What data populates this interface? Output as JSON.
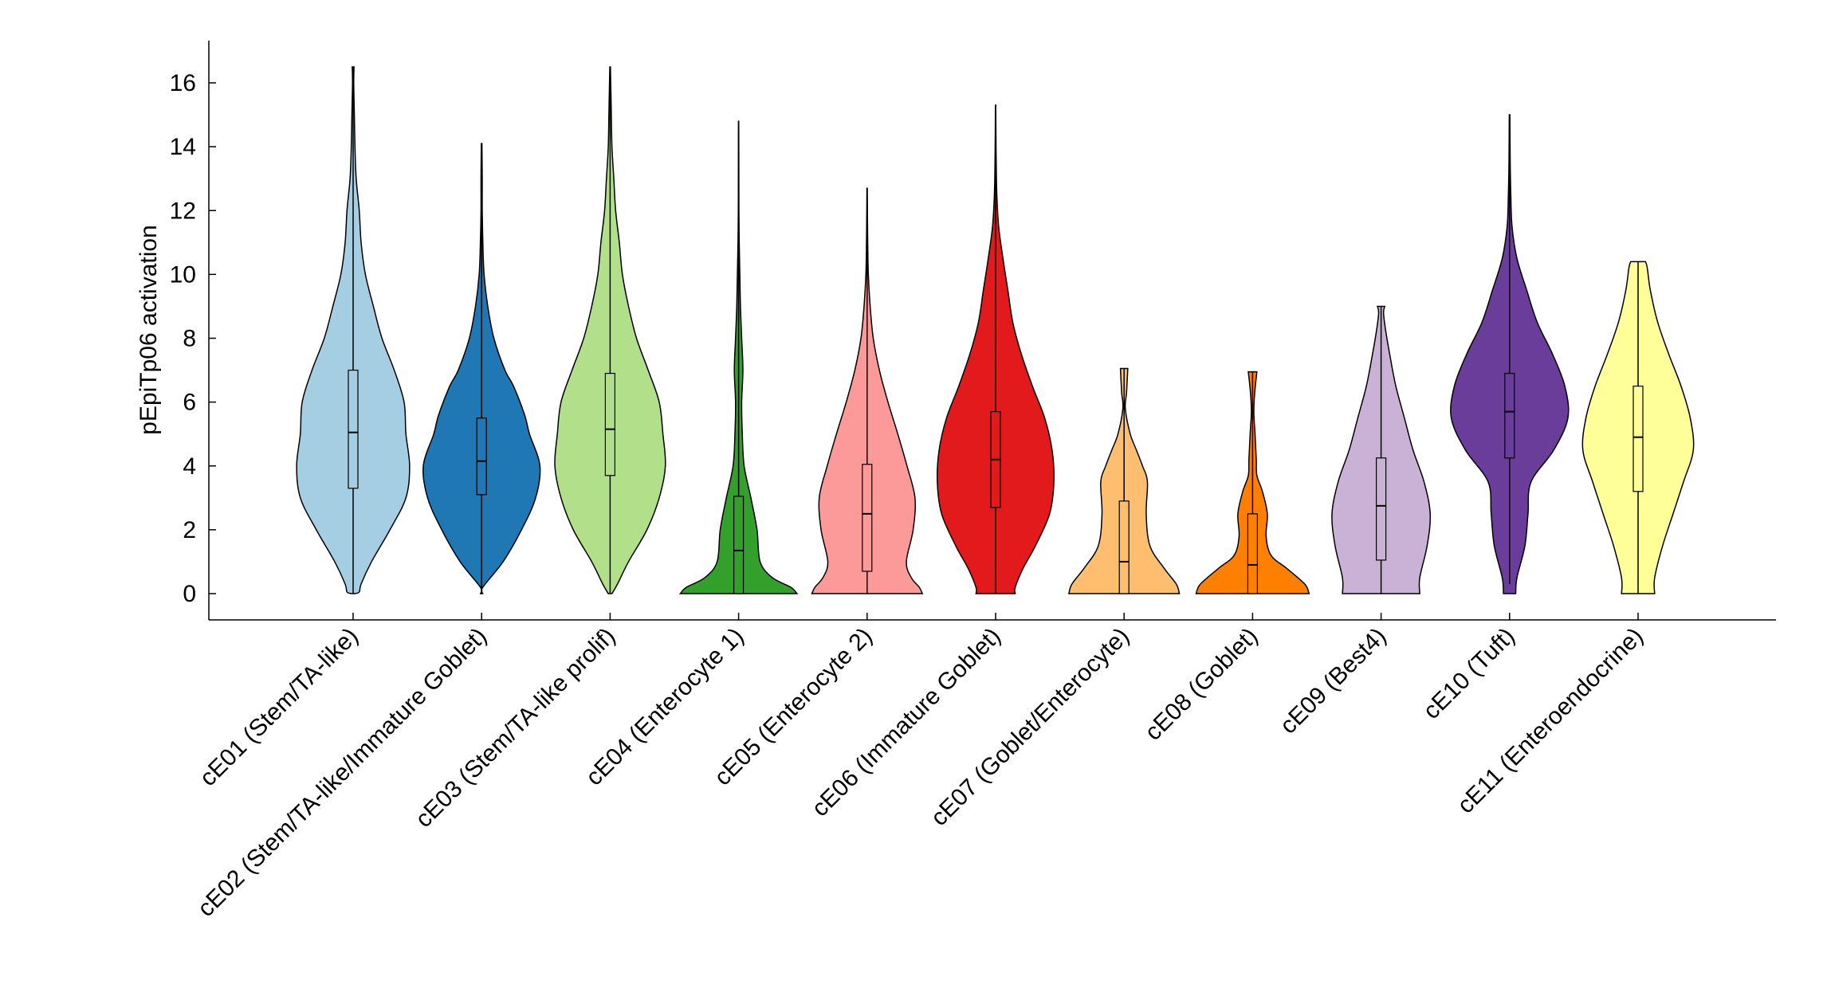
{
  "chart_data": {
    "type": "violin",
    "title": "",
    "xlabel": "",
    "ylabel": "pEpiTp06 activation",
    "ylim": [
      -0.8,
      17.3
    ],
    "yticks": [
      0,
      2,
      4,
      6,
      8,
      10,
      12,
      14,
      16
    ],
    "grid": false,
    "categories": [
      "cE01 (Stem/TA-like)",
      "cE02 (Stem/TA-like/Immature Goblet)",
      "cE03 (Stem/TA-like prolif)",
      "cE04 (Enterocyte 1)",
      "cE05 (Enterocyte 2)",
      "cE06 (Immature Goblet)",
      "cE07 (Goblet/Enterocyte)",
      "cE08 (Goblet)",
      "cE09 (Best4)",
      "cE10 (Tuft)",
      "cE11 (Enteroendocrine)"
    ],
    "colors": [
      "#a6cee3",
      "#1f78b4",
      "#b2df8a",
      "#33a02c",
      "#fb9a99",
      "#e31a1c",
      "#fdbf6f",
      "#ff7f00",
      "#cab2d6",
      "#6a3d9a",
      "#ffff99"
    ],
    "series": [
      {
        "name": "cE01 (Stem/TA-like)",
        "min": 0,
        "q1": 3.3,
        "median": 5.05,
        "q3": 7.0,
        "max": 16.5,
        "density": [
          [
            0,
            0.02
          ],
          [
            0.05,
            0.1
          ],
          [
            0.3,
            0.13
          ],
          [
            1,
            0.3
          ],
          [
            2,
            0.6
          ],
          [
            3,
            0.86
          ],
          [
            4,
            0.92
          ],
          [
            5,
            0.86
          ],
          [
            6,
            0.83
          ],
          [
            7,
            0.67
          ],
          [
            8,
            0.47
          ],
          [
            9,
            0.33
          ],
          [
            10,
            0.2
          ],
          [
            11,
            0.13
          ],
          [
            12,
            0.1
          ],
          [
            13,
            0.05
          ],
          [
            14,
            0.03
          ],
          [
            15,
            0.02
          ],
          [
            16,
            0.01
          ],
          [
            16.5,
            0.015
          ]
        ]
      },
      {
        "name": "cE02 (Stem/TA-like/Immature Goblet)",
        "min": 0,
        "q1": 3.1,
        "median": 4.15,
        "q3": 5.5,
        "max": 14.1,
        "density": [
          [
            0,
            0.02
          ],
          [
            0.2,
            0.02
          ],
          [
            1,
            0.35
          ],
          [
            2,
            0.65
          ],
          [
            3,
            0.88
          ],
          [
            4,
            0.95
          ],
          [
            5,
            0.78
          ],
          [
            5.6,
            0.7
          ],
          [
            6.5,
            0.52
          ],
          [
            7,
            0.38
          ],
          [
            8,
            0.2
          ],
          [
            9,
            0.1
          ],
          [
            10,
            0.04
          ],
          [
            11,
            0.02
          ],
          [
            12,
            0.01
          ],
          [
            13,
            0.01
          ],
          [
            14.1,
            0.005
          ]
        ]
      },
      {
        "name": "cE03 (Stem/TA-like prolif)",
        "min": 0,
        "q1": 3.7,
        "median": 5.15,
        "q3": 6.9,
        "max": 16.5,
        "density": [
          [
            0,
            0.03
          ],
          [
            0.3,
            0.12
          ],
          [
            1,
            0.3
          ],
          [
            2,
            0.6
          ],
          [
            3,
            0.8
          ],
          [
            4,
            0.9
          ],
          [
            5,
            0.86
          ],
          [
            6,
            0.8
          ],
          [
            7,
            0.62
          ],
          [
            8,
            0.43
          ],
          [
            9,
            0.3
          ],
          [
            10,
            0.2
          ],
          [
            11,
            0.15
          ],
          [
            12,
            0.09
          ],
          [
            13,
            0.06
          ],
          [
            14,
            0.03
          ],
          [
            15,
            0.02
          ],
          [
            16,
            0.01
          ],
          [
            16.5,
            0.005
          ]
        ]
      },
      {
        "name": "cE04 (Enterocyte 1)",
        "min": 0,
        "q1": 0,
        "median": 1.35,
        "q3": 3.05,
        "max": 14.8,
        "density": [
          [
            0,
            0.95
          ],
          [
            0.2,
            0.85
          ],
          [
            0.5,
            0.55
          ],
          [
            1,
            0.35
          ],
          [
            2,
            0.3
          ],
          [
            3,
            0.2
          ],
          [
            4,
            0.09
          ],
          [
            5,
            0.06
          ],
          [
            6,
            0.05
          ],
          [
            7,
            0.07
          ],
          [
            8,
            0.05
          ],
          [
            9,
            0.03
          ],
          [
            10,
            0.02
          ],
          [
            11,
            0.01
          ],
          [
            12,
            0.005
          ],
          [
            13,
            0.004
          ],
          [
            14,
            0.003
          ],
          [
            14.8,
            0.002
          ]
        ]
      },
      {
        "name": "cE05 (Enterocyte 2)",
        "min": 0,
        "q1": 0.7,
        "median": 2.5,
        "q3": 4.05,
        "max": 12.7,
        "density": [
          [
            0,
            0.9
          ],
          [
            0.2,
            0.85
          ],
          [
            0.5,
            0.72
          ],
          [
            1,
            0.64
          ],
          [
            2,
            0.75
          ],
          [
            3,
            0.78
          ],
          [
            4,
            0.65
          ],
          [
            5,
            0.5
          ],
          [
            6,
            0.34
          ],
          [
            7,
            0.2
          ],
          [
            8,
            0.1
          ],
          [
            9,
            0.05
          ],
          [
            10,
            0.02
          ],
          [
            11,
            0.01
          ],
          [
            12,
            0.005
          ],
          [
            12.7,
            0.003
          ]
        ]
      },
      {
        "name": "cE06 (Immature Goblet)",
        "min": 0,
        "q1": 2.7,
        "median": 4.2,
        "q3": 5.7,
        "max": 15.3,
        "density": [
          [
            0,
            0.32
          ],
          [
            0.2,
            0.32
          ],
          [
            0.8,
            0.45
          ],
          [
            1.5,
            0.65
          ],
          [
            2.5,
            0.88
          ],
          [
            3.5,
            0.95
          ],
          [
            4.5,
            0.92
          ],
          [
            5.5,
            0.8
          ],
          [
            6.5,
            0.6
          ],
          [
            7.5,
            0.42
          ],
          [
            8.5,
            0.28
          ],
          [
            9.5,
            0.2
          ],
          [
            10.5,
            0.12
          ],
          [
            11.5,
            0.05
          ],
          [
            12.5,
            0.02
          ],
          [
            13.5,
            0.01
          ],
          [
            14.5,
            0.005
          ],
          [
            15.3,
            0.003
          ]
        ]
      },
      {
        "name": "cE07 (Goblet/Enterocyte)",
        "min": 0,
        "q1": 0,
        "median": 1.0,
        "q3": 2.9,
        "max": 7.05,
        "density": [
          [
            0,
            0.9
          ],
          [
            0.3,
            0.85
          ],
          [
            0.8,
            0.65
          ],
          [
            1.5,
            0.42
          ],
          [
            2.5,
            0.36
          ],
          [
            3.5,
            0.38
          ],
          [
            4,
            0.3
          ],
          [
            4.5,
            0.2
          ],
          [
            5,
            0.1
          ],
          [
            5.8,
            0.02
          ],
          [
            6.3,
            0.04
          ],
          [
            7.05,
            0.06
          ]
        ]
      },
      {
        "name": "cE08 (Goblet)",
        "min": 0,
        "q1": 0,
        "median": 0.9,
        "q3": 2.5,
        "max": 6.95,
        "density": [
          [
            0,
            0.92
          ],
          [
            0.3,
            0.85
          ],
          [
            0.8,
            0.55
          ],
          [
            1.2,
            0.3
          ],
          [
            1.8,
            0.22
          ],
          [
            2.5,
            0.24
          ],
          [
            3.2,
            0.16
          ],
          [
            3.7,
            0.07
          ],
          [
            4.2,
            0.06
          ],
          [
            5,
            0.04
          ],
          [
            5.7,
            0.02
          ],
          [
            6.3,
            0.035
          ],
          [
            6.95,
            0.07
          ]
        ]
      },
      {
        "name": "cE09 (Best4)",
        "min": 0,
        "q1": 1.05,
        "median": 2.75,
        "q3": 4.25,
        "max": 9.0,
        "density": [
          [
            0,
            0.63
          ],
          [
            0.5,
            0.63
          ],
          [
            1.5,
            0.75
          ],
          [
            2.5,
            0.8
          ],
          [
            3.5,
            0.7
          ],
          [
            4.5,
            0.52
          ],
          [
            5.5,
            0.38
          ],
          [
            6.5,
            0.24
          ],
          [
            7.5,
            0.14
          ],
          [
            8.3,
            0.07
          ],
          [
            8.8,
            0.04
          ],
          [
            9.0,
            0.06
          ]
        ]
      },
      {
        "name": "cE10 (Tuft)",
        "min": 0.3,
        "q1": 4.25,
        "median": 5.7,
        "q3": 6.9,
        "max": 15.0,
        "density": [
          [
            0,
            0.1
          ],
          [
            0.5,
            0.12
          ],
          [
            1.5,
            0.25
          ],
          [
            2.5,
            0.3
          ],
          [
            3.5,
            0.35
          ],
          [
            4.5,
            0.72
          ],
          [
            5.5,
            0.95
          ],
          [
            6.5,
            0.9
          ],
          [
            7.5,
            0.7
          ],
          [
            8.5,
            0.45
          ],
          [
            9.5,
            0.28
          ],
          [
            10.5,
            0.12
          ],
          [
            11.5,
            0.04
          ],
          [
            12.5,
            0.02
          ],
          [
            13.5,
            0.01
          ],
          [
            15.0,
            0.005
          ]
        ]
      },
      {
        "name": "cE11 (Enteroendocrine)",
        "min": 0,
        "q1": 3.2,
        "median": 4.9,
        "q3": 6.5,
        "max": 10.4,
        "density": [
          [
            0,
            0.27
          ],
          [
            0.5,
            0.27
          ],
          [
            1.5,
            0.4
          ],
          [
            2.5,
            0.57
          ],
          [
            3.5,
            0.74
          ],
          [
            4.5,
            0.9
          ],
          [
            5.5,
            0.85
          ],
          [
            6.5,
            0.7
          ],
          [
            7.5,
            0.5
          ],
          [
            8.5,
            0.32
          ],
          [
            9.5,
            0.2
          ],
          [
            10.2,
            0.15
          ],
          [
            10.4,
            0.12
          ]
        ]
      }
    ]
  }
}
